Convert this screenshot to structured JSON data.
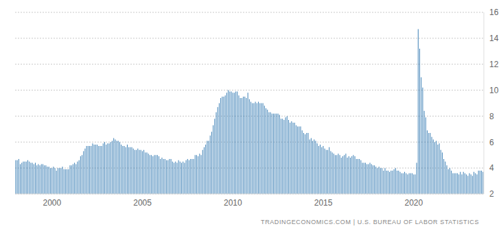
{
  "chart_data": {
    "type": "bar",
    "source": "TRADINGECONOMICS.COM | U.S. BUREAU OF LABOR STATISTICS",
    "categories": [
      null,
      null,
      null,
      null,
      null,
      null,
      null,
      null,
      null,
      null,
      null,
      null,
      null,
      null,
      null,
      null,
      null,
      null,
      null,
      null,
      null,
      null,
      null,
      null,
      "2000",
      null,
      null,
      null,
      null,
      null,
      null,
      null,
      null,
      null,
      null,
      null,
      null,
      null,
      null,
      null,
      null,
      null,
      null,
      null,
      null,
      null,
      null,
      null,
      null,
      null,
      null,
      null,
      null,
      null,
      null,
      null,
      null,
      null,
      null,
      null,
      null,
      null,
      null,
      null,
      null,
      null,
      null,
      null,
      null,
      null,
      null,
      null,
      null,
      null,
      null,
      null,
      null,
      null,
      null,
      null,
      null,
      null,
      null,
      null,
      "2005",
      null,
      null,
      null,
      null,
      null,
      null,
      null,
      null,
      null,
      null,
      null,
      null,
      null,
      null,
      null,
      null,
      null,
      null,
      null,
      null,
      null,
      null,
      null,
      null,
      null,
      null,
      null,
      null,
      null,
      null,
      null,
      null,
      null,
      null,
      null,
      null,
      null,
      null,
      null,
      null,
      null,
      null,
      null,
      null,
      null,
      null,
      null,
      null,
      null,
      null,
      null,
      null,
      null,
      null,
      null,
      null,
      null,
      null,
      null,
      "2010",
      null,
      null,
      null,
      null,
      null,
      null,
      null,
      null,
      null,
      null,
      null,
      null,
      null,
      null,
      null,
      null,
      null,
      null,
      null,
      null,
      null,
      null,
      null,
      null,
      null,
      null,
      null,
      null,
      null,
      null,
      null,
      null,
      null,
      null,
      null,
      null,
      null,
      null,
      null,
      null,
      null,
      null,
      null,
      null,
      null,
      null,
      null,
      null,
      null,
      null,
      null,
      null,
      null,
      null,
      null,
      null,
      null,
      null,
      null,
      "2015",
      null,
      null,
      null,
      null,
      null,
      null,
      null,
      null,
      null,
      null,
      null,
      null,
      null,
      null,
      null,
      null,
      null,
      null,
      null,
      null,
      null,
      null,
      null,
      null,
      null,
      null,
      null,
      null,
      null,
      null,
      null,
      null,
      null,
      null,
      null,
      null,
      null,
      null,
      null,
      null,
      null,
      null,
      null,
      null,
      null,
      null,
      null,
      null,
      null,
      null,
      null,
      null,
      null,
      null,
      null,
      null,
      null,
      null,
      null,
      "2020",
      null,
      null,
      null,
      null,
      null,
      null,
      null,
      null,
      null,
      null,
      null,
      null,
      null,
      null,
      null,
      null,
      null,
      null,
      null,
      null,
      null,
      null,
      null,
      null,
      null,
      null,
      null,
      null,
      null,
      null,
      null,
      null,
      null,
      null,
      null,
      null,
      null,
      null,
      null,
      null,
      null,
      null,
      null,
      null,
      null,
      null
    ],
    "values": [
      4.6,
      4.6,
      4.7,
      4.3,
      4.4,
      4.5,
      4.5,
      4.5,
      4.6,
      4.5,
      4.4,
      4.4,
      4.3,
      4.4,
      4.2,
      4.3,
      4.2,
      4.3,
      4.3,
      4.2,
      4.2,
      4.1,
      4.1,
      4.0,
      4.0,
      4.1,
      4.0,
      3.8,
      4.0,
      4.0,
      4.0,
      4.1,
      3.9,
      3.9,
      3.9,
      3.9,
      4.2,
      4.2,
      4.3,
      4.4,
      4.3,
      4.5,
      4.6,
      4.9,
      5.0,
      5.3,
      5.5,
      5.7,
      5.7,
      5.7,
      5.7,
      5.9,
      5.8,
      5.8,
      5.8,
      5.7,
      5.7,
      5.7,
      5.9,
      6.0,
      5.8,
      5.9,
      5.9,
      6.0,
      6.1,
      6.3,
      6.2,
      6.1,
      6.1,
      6.0,
      5.8,
      5.7,
      5.7,
      5.6,
      5.8,
      5.6,
      5.6,
      5.6,
      5.5,
      5.4,
      5.4,
      5.5,
      5.4,
      5.4,
      5.3,
      5.4,
      5.2,
      5.2,
      5.1,
      5.0,
      5.0,
      4.9,
      5.0,
      5.0,
      5.0,
      4.9,
      4.7,
      4.8,
      4.7,
      4.7,
      4.6,
      4.6,
      4.7,
      4.7,
      4.5,
      4.4,
      4.5,
      4.4,
      4.6,
      4.5,
      4.4,
      4.5,
      4.4,
      4.6,
      4.7,
      4.6,
      4.7,
      4.7,
      4.7,
      5.0,
      5.0,
      4.9,
      5.1,
      5.0,
      5.4,
      5.6,
      5.8,
      6.1,
      6.1,
      6.5,
      6.8,
      7.3,
      7.8,
      8.3,
      8.7,
      9.0,
      9.4,
      9.5,
      9.5,
      9.6,
      9.8,
      10.0,
      9.9,
      9.9,
      9.8,
      9.8,
      9.9,
      9.9,
      9.6,
      9.4,
      9.4,
      9.5,
      9.5,
      9.4,
      9.8,
      9.3,
      9.1,
      9.0,
      9.0,
      9.1,
      9.0,
      9.1,
      9.0,
      9.0,
      9.0,
      8.8,
      8.6,
      8.5,
      8.3,
      8.3,
      8.2,
      8.2,
      8.2,
      8.2,
      8.2,
      8.1,
      7.8,
      7.8,
      7.7,
      7.9,
      8.0,
      7.7,
      7.5,
      7.6,
      7.5,
      7.5,
      7.3,
      7.2,
      7.2,
      7.2,
      6.9,
      6.7,
      6.6,
      6.7,
      6.7,
      6.2,
      6.3,
      6.1,
      6.2,
      6.1,
      5.9,
      5.7,
      5.8,
      5.6,
      5.7,
      5.5,
      5.4,
      5.4,
      5.6,
      5.3,
      5.2,
      5.1,
      5.0,
      5.0,
      5.1,
      5.0,
      4.8,
      4.9,
      5.0,
      5.1,
      4.8,
      4.9,
      4.8,
      4.9,
      5.0,
      4.9,
      4.7,
      4.7,
      4.7,
      4.6,
      4.4,
      4.4,
      4.4,
      4.3,
      4.3,
      4.4,
      4.3,
      4.2,
      4.2,
      4.1,
      4.0,
      4.1,
      4.0,
      4.0,
      3.8,
      4.0,
      3.8,
      3.8,
      3.7,
      3.8,
      3.8,
      3.9,
      4.0,
      3.8,
      3.8,
      3.7,
      3.6,
      3.6,
      3.7,
      3.6,
      3.5,
      3.6,
      3.6,
      3.6,
      3.5,
      3.5,
      4.4,
      14.7,
      13.2,
      11.0,
      10.2,
      8.4,
      7.9,
      6.9,
      6.7,
      6.7,
      6.4,
      6.2,
      6.0,
      6.1,
      5.8,
      5.9,
      5.4,
      5.2,
      4.7,
      4.5,
      4.2,
      3.9,
      4.0,
      3.8,
      3.6,
      3.6,
      3.6,
      3.6,
      3.5,
      3.7,
      3.5,
      3.7,
      3.6,
      3.5,
      3.4,
      3.6,
      3.5,
      3.4,
      3.7,
      3.6,
      3.5,
      3.8,
      3.8,
      3.8,
      3.7
    ],
    "color": "#3d80b6",
    "ylim": [
      2,
      16
    ],
    "yticks": [
      2,
      4,
      6,
      8,
      10,
      12,
      14,
      16
    ],
    "grid": true
  }
}
